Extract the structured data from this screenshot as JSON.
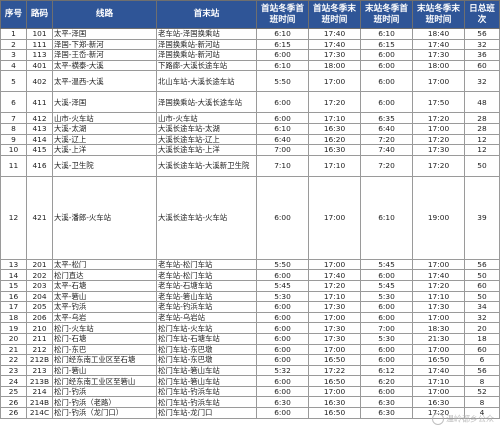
{
  "headers": [
    "序号",
    "路码",
    "线路",
    "首末站",
    "首站冬季首班时间",
    "首站冬季末班时间",
    "末站冬季首班时间",
    "末站冬季末班时间",
    "日总班次"
  ],
  "rows": [
    {
      "no": "1",
      "code": "101",
      "route": "太平-泽国",
      "terminals": "老车站-泽国换乘站",
      "f1": "6:10",
      "f2": "17:40",
      "l1": "6:10",
      "l2": "18:40",
      "n": "56"
    },
    {
      "no": "2",
      "code": "111",
      "route": "泽国-下郑-新河",
      "terminals": "泽国换乘站-新河站",
      "f1": "6:15",
      "f2": "17:40",
      "l1": "6:15",
      "l2": "17:40",
      "n": "32"
    },
    {
      "no": "3",
      "code": "113",
      "route": "泽国-王岙-新河",
      "terminals": "泽国换乘站-新河站",
      "f1": "6:00",
      "f2": "17:30",
      "l1": "6:00",
      "l2": "17:30",
      "n": "36"
    },
    {
      "no": "4",
      "code": "401",
      "route": "太平-横泰-大溪",
      "terminals": "下路廊-大溪长途车站",
      "f1": "6:10",
      "f2": "18:00",
      "l1": "6:00",
      "l2": "18:00",
      "n": "60"
    },
    {
      "no": "5",
      "code": "402",
      "route": "太平-温西-大溪",
      "terminals": "北山车站-大溪长途车站",
      "f1": "5:50",
      "f2": "17:00",
      "l1": "6:00",
      "l2": "17:00",
      "n": "32"
    },
    {
      "no": "6",
      "code": "411",
      "route": "大溪-泽国",
      "terminals": "泽国换乘站-大溪长途车站",
      "f1": "6:00",
      "f2": "17:20",
      "l1": "6:00",
      "l2": "17:50",
      "n": "48"
    },
    {
      "no": "7",
      "code": "412",
      "route": "山市-火车站",
      "terminals": "山市-火车站",
      "f1": "6:00",
      "f2": "17:10",
      "l1": "6:35",
      "l2": "17:20",
      "n": "28"
    },
    {
      "no": "8",
      "code": "413",
      "route": "大溪-太湖",
      "terminals": "大溪长途车站-太湖",
      "f1": "6:10",
      "f2": "16:30",
      "l1": "6:40",
      "l2": "17:00",
      "n": "28"
    },
    {
      "no": "9",
      "code": "414",
      "route": "大溪-辽上",
      "terminals": "大溪长途车站-辽上",
      "f1": "6:40",
      "f2": "16:20",
      "l1": "7:20",
      "l2": "17:20",
      "n": "12"
    },
    {
      "no": "10",
      "code": "415",
      "route": "大溪-上洋",
      "terminals": "大溪长途车站-上洋",
      "f1": "7:00",
      "f2": "16:30",
      "l1": "7:40",
      "l2": "17:30",
      "n": "12"
    },
    {
      "no": "11",
      "code": "416",
      "route": "大溪-卫生院",
      "terminals": "大溪长途车站-大溪新卫生院",
      "f1": "7:10",
      "f2": "17:10",
      "l1": "7:20",
      "l2": "17:20",
      "n": "50"
    },
    {
      "no": "12",
      "code": "421",
      "route": "大溪-潘郎-火车站",
      "terminals": "大溪长途车站-火车站",
      "f1": "6:00",
      "f2": "17:00",
      "l1": "6:10",
      "l2": "19:00",
      "n": "39"
    },
    {
      "no": "13",
      "code": "201",
      "route": "太平-松门",
      "terminals": "老车站-松门车站",
      "f1": "5:50",
      "f2": "17:00",
      "l1": "5:45",
      "l2": "17:00",
      "n": "56"
    },
    {
      "no": "14",
      "code": "202",
      "route": "松门直达",
      "terminals": "老车站-松门车站",
      "f1": "6:00",
      "f2": "17:40",
      "l1": "6:00",
      "l2": "17:40",
      "n": "50"
    },
    {
      "no": "15",
      "code": "203",
      "route": "太平-石塘",
      "terminals": "老车站-石塘车站",
      "f1": "5:45",
      "f2": "17:20",
      "l1": "5:45",
      "l2": "17:20",
      "n": "60"
    },
    {
      "no": "16",
      "code": "204",
      "route": "太平-箬山",
      "terminals": "老车站-箬山车站",
      "f1": "5:30",
      "f2": "17:10",
      "l1": "5:30",
      "l2": "17:10",
      "n": "50"
    },
    {
      "no": "17",
      "code": "205",
      "route": "太平-钓浜",
      "terminals": "老车站-钓浜车站",
      "f1": "6:00",
      "f2": "17:30",
      "l1": "6:00",
      "l2": "17:30",
      "n": "34"
    },
    {
      "no": "18",
      "code": "206",
      "route": "太平-乌岩",
      "terminals": "老车站-乌岩站",
      "f1": "6:00",
      "f2": "17:00",
      "l1": "6:00",
      "l2": "17:00",
      "n": "32"
    },
    {
      "no": "19",
      "code": "210",
      "route": "松门-火车站",
      "terminals": "松门车站-火车站",
      "f1": "6:00",
      "f2": "17:30",
      "l1": "7:00",
      "l2": "18:30",
      "n": "20"
    },
    {
      "no": "20",
      "code": "211",
      "route": "松门-石塘",
      "terminals": "松门车站-石塘车站",
      "f1": "6:00",
      "f2": "17:30",
      "l1": "5:30",
      "l2": "21:30",
      "n": "18"
    },
    {
      "no": "21",
      "code": "212",
      "route": "松门-东巴",
      "terminals": "松门车站-东巴墩",
      "f1": "6:00",
      "f2": "17:00",
      "l1": "6:00",
      "l2": "17:00",
      "n": "60"
    },
    {
      "no": "22",
      "code": "212B",
      "route": "松门经东南工业区至石塘",
      "terminals": "松门车站-东巴墩",
      "f1": "6:00",
      "f2": "16:50",
      "l1": "6:00",
      "l2": "16:50",
      "n": "6"
    },
    {
      "no": "23",
      "code": "213",
      "route": "松门-箬山",
      "terminals": "松门车站-箬山车站",
      "f1": "5:32",
      "f2": "17:22",
      "l1": "6:12",
      "l2": "17:40",
      "n": "56"
    },
    {
      "no": "24",
      "code": "213B",
      "route": "松门经东南工业区至箬山",
      "terminals": "松门车站-箬山车站",
      "f1": "6:00",
      "f2": "16:50",
      "l1": "6:20",
      "l2": "17:10",
      "n": "8"
    },
    {
      "no": "25",
      "code": "214",
      "route": "松门-钓浜",
      "terminals": "松门车站-钓浜车站",
      "f1": "6:00",
      "f2": "17:00",
      "l1": "6:00",
      "l2": "17:00",
      "n": "52"
    },
    {
      "no": "26",
      "code": "214B",
      "route": "松门-钓浜（老路）",
      "terminals": "松门车站-钓浜车站",
      "f1": "6:30",
      "f2": "16:30",
      "l1": "6:30",
      "l2": "16:30",
      "n": "8"
    },
    {
      "no": "26",
      "code": "214C",
      "route": "松门-钓浜（龙门口）",
      "terminals": "松门车站-龙门口",
      "f1": "6:00",
      "f2": "16:50",
      "l1": "6:30",
      "l2": "17:20",
      "n": "4"
    }
  ],
  "watermark": "温岭都乡公众"
}
